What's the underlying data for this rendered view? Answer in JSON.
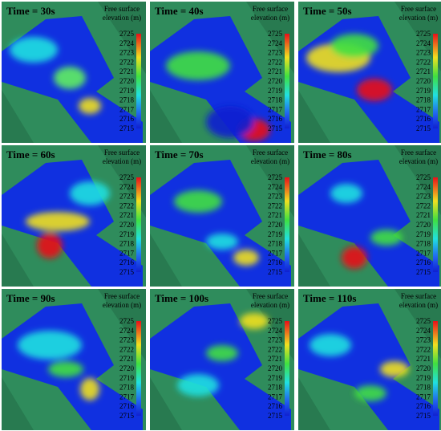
{
  "panels": [
    {
      "time": "Time = 30s"
    },
    {
      "time": "Time = 40s"
    },
    {
      "time": "Time = 50s"
    },
    {
      "time": "Time = 60s"
    },
    {
      "time": "Time = 70s"
    },
    {
      "time": "Time = 80s"
    },
    {
      "time": "Time = 90s"
    },
    {
      "time": "Time = 100s"
    },
    {
      "time": "Time = 110s"
    }
  ],
  "colorbar": {
    "title_lines": [
      "Free surface",
      "elevation (m)"
    ],
    "ticks": [
      2725,
      2724,
      2723,
      2722,
      2721,
      2720,
      2719,
      2718,
      2717,
      2716,
      2715
    ]
  }
}
